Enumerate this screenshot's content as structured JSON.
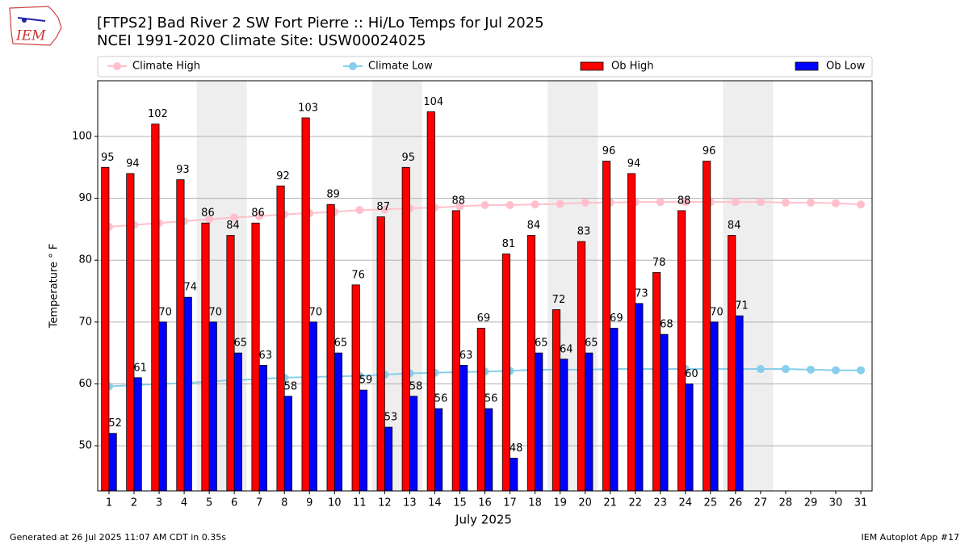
{
  "logo": "IEM",
  "footer_left": "Generated at 26 Jul 2025 11:07 AM CDT in 0.35s",
  "footer_right": "IEM Autoplot App #17",
  "chart_data": {
    "type": "bar",
    "title": "[FTPS2] Bad River 2 SW Fort Pierre :: Hi/Lo Temps for Jul 2025",
    "subtitle": "NCEI 1991-2020 Climate Site: USW00024025",
    "xlabel": "July 2025",
    "ylabel": "Temperature ° F",
    "x": [
      1,
      2,
      3,
      4,
      5,
      6,
      7,
      8,
      9,
      10,
      11,
      12,
      13,
      14,
      15,
      16,
      17,
      18,
      19,
      20,
      21,
      22,
      23,
      24,
      25,
      26,
      27,
      28,
      29,
      30,
      31
    ],
    "xlim": [
      0.55,
      31.45
    ],
    "xticks": [
      1,
      2,
      3,
      4,
      5,
      6,
      7,
      8,
      9,
      10,
      11,
      12,
      13,
      14,
      15,
      16,
      17,
      18,
      19,
      20,
      21,
      22,
      23,
      24,
      25,
      26,
      27,
      28,
      29,
      30,
      31
    ],
    "ylim": [
      42.7,
      109
    ],
    "yticks": [
      50,
      60,
      70,
      80,
      90,
      100
    ],
    "grid": true,
    "legend": "top",
    "weekends": [
      [
        5,
        6
      ],
      [
        12,
        13
      ],
      [
        19,
        20
      ],
      [
        26,
        27
      ]
    ],
    "series": [
      {
        "name": "Climate High",
        "kind": "line",
        "color": "#ffc0cb",
        "values": [
          85.4,
          85.7,
          86.0,
          86.3,
          86.6,
          86.9,
          87.1,
          87.4,
          87.6,
          87.8,
          88.1,
          88.2,
          88.4,
          88.5,
          88.7,
          88.9,
          88.9,
          89.0,
          89.1,
          89.3,
          89.3,
          89.4,
          89.4,
          89.4,
          89.4,
          89.4,
          89.4,
          89.3,
          89.3,
          89.2,
          89.0
        ]
      },
      {
        "name": "Climate Low",
        "kind": "line",
        "color": "#87ceeb",
        "values": [
          59.6,
          59.8,
          60.0,
          60.1,
          60.4,
          60.6,
          60.8,
          61.0,
          61.1,
          61.2,
          61.3,
          61.5,
          61.7,
          61.8,
          61.9,
          62.0,
          62.1,
          62.3,
          62.3,
          62.3,
          62.4,
          62.4,
          62.4,
          62.4,
          62.4,
          62.4,
          62.4,
          62.4,
          62.3,
          62.2,
          62.2
        ]
      },
      {
        "name": "Ob High",
        "kind": "bar",
        "offset": -1,
        "color": "#ff0000",
        "values": [
          95,
          94,
          102,
          93,
          86,
          84,
          86,
          92,
          103,
          89,
          76,
          87,
          95,
          104,
          88,
          69,
          81,
          84,
          72,
          83,
          96,
          94,
          78,
          88,
          96,
          84,
          null,
          null,
          null,
          null,
          null
        ]
      },
      {
        "name": "Ob Low",
        "kind": "bar",
        "offset": 1,
        "color": "#0000ff",
        "values": [
          52,
          61,
          70,
          74,
          70,
          65,
          63,
          58,
          70,
          65,
          59,
          53,
          58,
          56,
          63,
          56,
          48,
          65,
          64,
          65,
          69,
          73,
          68,
          60,
          70,
          71,
          null,
          null,
          null,
          null,
          null
        ]
      }
    ]
  }
}
